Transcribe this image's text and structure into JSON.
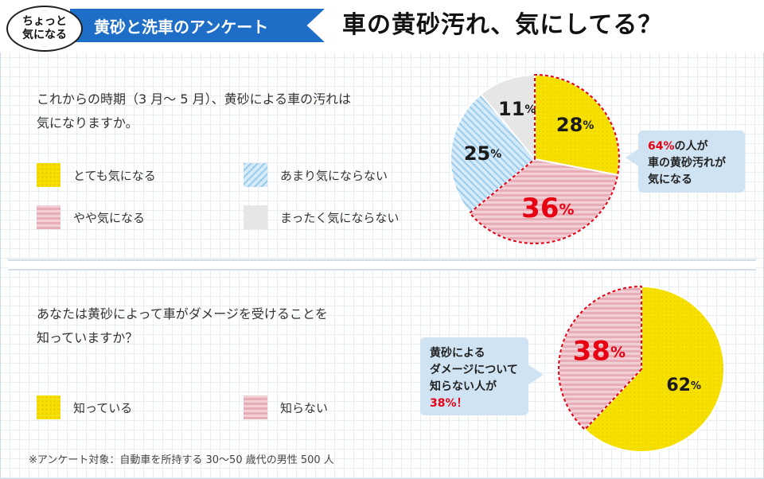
{
  "header": {
    "badge_line1": "ちょっと",
    "badge_line2": "気になる",
    "banner_title": "黄砂と洗車のアンケート",
    "main_title": "車の黄砂汚れ、気にしてる？"
  },
  "section1": {
    "question_line1": "これからの時期（3 月〜 5 月）、黄砂による車の汚れは",
    "question_line2": "気になりますか。",
    "callout": {
      "pct": "64%",
      "line1_rest": "の人が",
      "line2": "車の黄砂汚れが",
      "line3": "気になる"
    }
  },
  "section2": {
    "question_line1": "あなたは黄砂によって車がダメージを受けることを",
    "question_line2": "知っていますか？",
    "callout": {
      "line1": "黄砂による",
      "line2": "ダメージについて",
      "line3": "知らない人が",
      "pct_line": "38%！"
    }
  },
  "footnote": "※アンケート対象：自動車を所持する 30〜50 歳代の男性 500 人",
  "colors": {
    "yellow": "#f5e000",
    "blue": "#d6ebf9",
    "pink": "#f2cfd5",
    "gray": "#e6e6e6",
    "accent_red": "#e60012",
    "banner_blue": "#1e6ec8"
  },
  "chart_data": [
    {
      "type": "pie",
      "categories": [
        "とても気になる",
        "やや気になる",
        "あまり気にならない",
        "まったく気にならない"
      ],
      "values": [
        28,
        36,
        25,
        11
      ],
      "unit": "%",
      "fills": [
        "yellow",
        "pink",
        "blue",
        "gray"
      ],
      "highlight_categories": [
        "とても気になる",
        "やや気になる"
      ]
    },
    {
      "type": "pie",
      "categories": [
        "知っている",
        "知らない"
      ],
      "values": [
        62,
        38
      ],
      "unit": "%",
      "fills": [
        "yellow",
        "pink"
      ],
      "highlight_categories": [
        "知らない"
      ]
    }
  ]
}
